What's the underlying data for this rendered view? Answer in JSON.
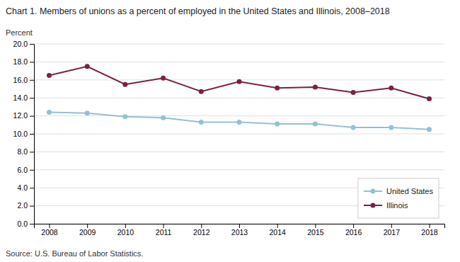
{
  "chart_data": {
    "type": "line",
    "title": "Chart 1. Members of unions as a percent of employed in the United States and Illinois, 2008–2018",
    "ylabel": "Percent",
    "source": "Source: U.S. Bureau of Labor Statistics.",
    "x": [
      2008,
      2009,
      2010,
      2011,
      2012,
      2013,
      2014,
      2015,
      2016,
      2017,
      2018
    ],
    "series": [
      {
        "name": "United States",
        "color": "#92c0d8",
        "marker": "circle",
        "line_style": "solid",
        "values": [
          12.4,
          12.3,
          11.9,
          11.8,
          11.3,
          11.3,
          11.1,
          11.1,
          10.7,
          10.7,
          10.5
        ]
      },
      {
        "name": "Illinois",
        "color": "#7b2045",
        "marker": "circle",
        "line_style": "solid",
        "values": [
          16.5,
          17.5,
          15.5,
          16.2,
          14.7,
          15.8,
          15.1,
          15.2,
          14.6,
          15.1,
          13.9
        ]
      }
    ],
    "xlim": [
      2007.6,
      2018.4
    ],
    "xticks": [
      2008,
      2009,
      2010,
      2011,
      2012,
      2013,
      2014,
      2015,
      2016,
      2017,
      2018
    ],
    "ylim": [
      0,
      20.0
    ],
    "yticks": [
      {
        "value": 0.0,
        "label": "0.0"
      },
      {
        "value": 2.0,
        "label": "2.0"
      },
      {
        "value": 4.0,
        "label": "4.0"
      },
      {
        "value": 6.0,
        "label": "6.0"
      },
      {
        "value": 8.0,
        "label": "8.0"
      },
      {
        "value": 10.0,
        "label": "10.0"
      },
      {
        "value": 12.0,
        "label": "12.0"
      },
      {
        "value": 14.0,
        "label": "14.0"
      },
      {
        "value": 16.0,
        "label": "16.0"
      },
      {
        "value": 18.0,
        "label": "18.0"
      },
      {
        "value": 20.0,
        "label": "20.0"
      }
    ],
    "grid": true,
    "legend": "lower right"
  }
}
